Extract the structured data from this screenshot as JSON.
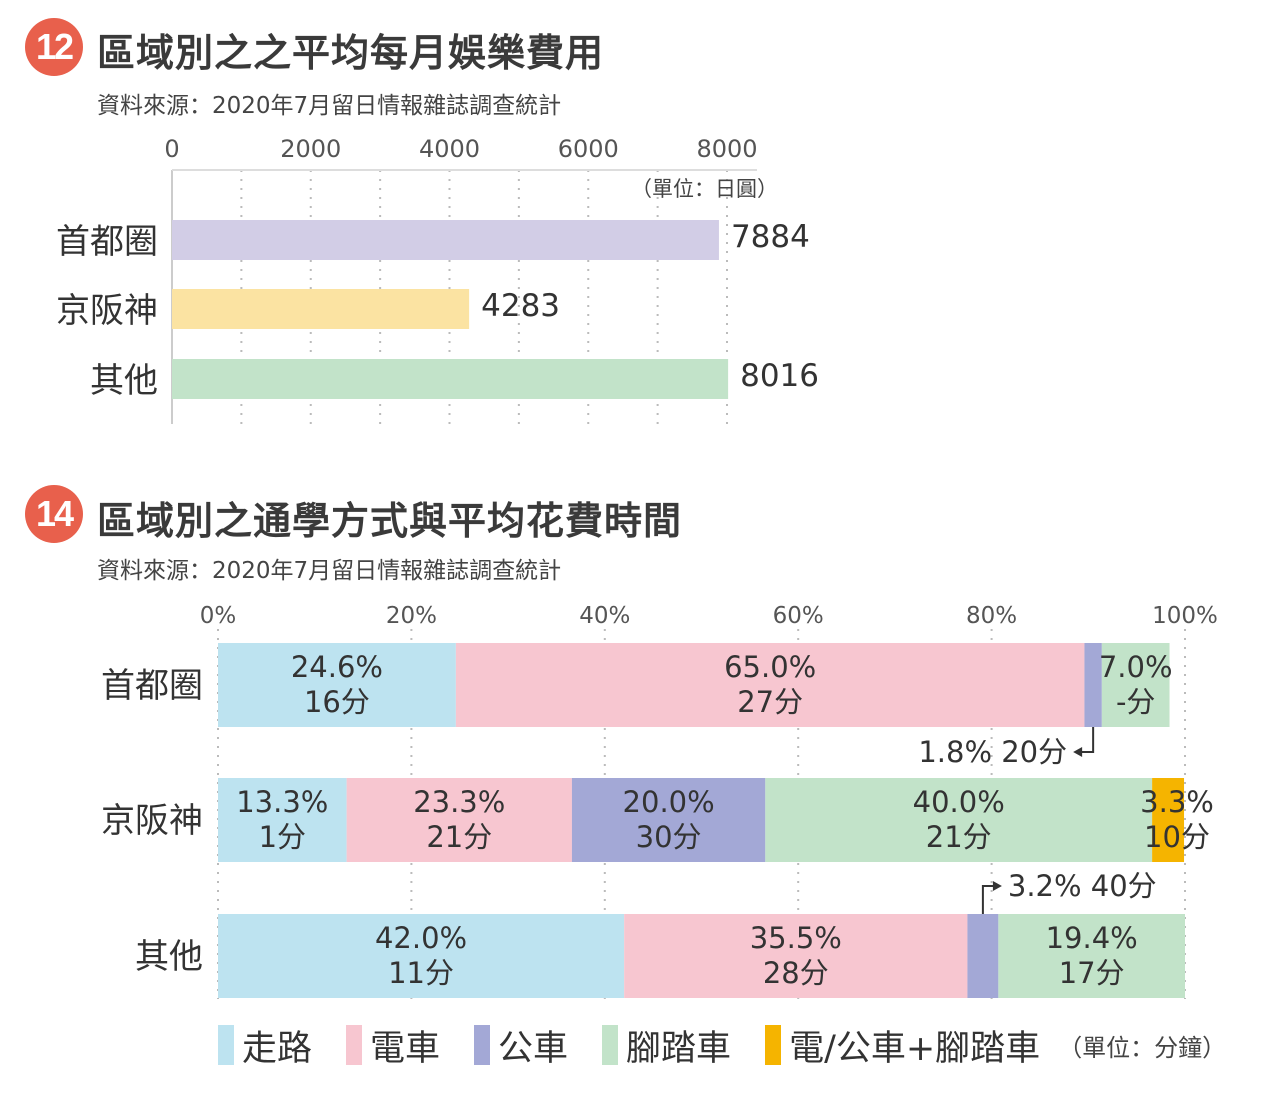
{
  "sections": [
    {
      "number": "12",
      "title": "區域別之之平均每月娛樂費用",
      "source": "資料來源：2020年7月留日情報雜誌調查統計"
    },
    {
      "number": "14",
      "title": "區域別之通學方式與平均花費時間",
      "source": "資料來源：2020年7月留日情報雜誌調查統計"
    }
  ],
  "legend": {
    "items": [
      {
        "label": "走路",
        "color": "#bde3f0"
      },
      {
        "label": "電車",
        "color": "#f7c6d0"
      },
      {
        "label": "公車",
        "color": "#a3a8d6"
      },
      {
        "label": "腳踏車",
        "color": "#c2e3c9"
      },
      {
        "label": "電/公車+腳踏車",
        "color": "#f5b400"
      }
    ],
    "unit": "（單位：分鐘）"
  },
  "chart_data": [
    {
      "type": "bar",
      "orientation": "horizontal",
      "title": "區域別之之平均每月娛樂費用",
      "unit_label": "（單位：日圓）",
      "categories": [
        "首都圈",
        "京阪神",
        "其他"
      ],
      "values": [
        7884,
        4283,
        8016
      ],
      "value_labels": [
        "7884",
        "4283",
        "8016"
      ],
      "colors": [
        "#d2cde6",
        "#fbe3a2",
        "#c2e3c9"
      ],
      "xlim": [
        0,
        8000
      ],
      "xticks": [
        "0",
        "2000",
        "4000",
        "6000",
        "8000"
      ],
      "tick_values": [
        0,
        2000,
        4000,
        6000,
        8000
      ],
      "grid": true,
      "grid_style": "dotted"
    },
    {
      "type": "bar",
      "orientation": "horizontal",
      "stacked": "percent",
      "title": "區域別之通學方式與平均花費時間",
      "categories": [
        "首都圈",
        "京阪神",
        "其他"
      ],
      "xlim": [
        0,
        100
      ],
      "xticks": [
        "0%",
        "20%",
        "40%",
        "60%",
        "80%",
        "100%"
      ],
      "tick_values": [
        0,
        20,
        40,
        60,
        80,
        100
      ],
      "grid": true,
      "grid_style": "dotted",
      "series": [
        {
          "name": "走路",
          "color": "#bde3f0",
          "values": [
            24.6,
            13.3,
            42.0
          ],
          "minutes": [
            "16分",
            "1分",
            "11分"
          ],
          "pct_labels": [
            "24.6%",
            "13.3%",
            "42.0%"
          ]
        },
        {
          "name": "電車",
          "color": "#f7c6d0",
          "values": [
            65.0,
            23.3,
            35.5
          ],
          "minutes": [
            "27分",
            "21分",
            "28分"
          ],
          "pct_labels": [
            "65.0%",
            "23.3%",
            "35.5%"
          ]
        },
        {
          "name": "公車",
          "color": "#a3a8d6",
          "values": [
            1.8,
            20.0,
            3.2
          ],
          "minutes": [
            "20分",
            "30分",
            "40分"
          ],
          "pct_labels": [
            "1.8%",
            "20.0%",
            "3.2%"
          ]
        },
        {
          "name": "腳踏車",
          "color": "#c2e3c9",
          "values": [
            7.0,
            40.0,
            19.4
          ],
          "minutes": [
            "-分",
            "21分",
            "17分"
          ],
          "pct_labels": [
            "7.0%",
            "40.0%",
            "19.4%"
          ]
        },
        {
          "name": "電/公車+腳踏車",
          "color": "#f5b400",
          "values": [
            0,
            3.3,
            0
          ],
          "minutes": [
            "",
            "10分",
            ""
          ],
          "pct_labels": [
            "",
            "3.3%",
            ""
          ]
        }
      ],
      "callouts": [
        {
          "category": "首都圈",
          "series": "公車",
          "text": "1.8%  20分"
        },
        {
          "category": "其他",
          "series": "公車",
          "text": "3.2%  40分"
        }
      ]
    }
  ]
}
